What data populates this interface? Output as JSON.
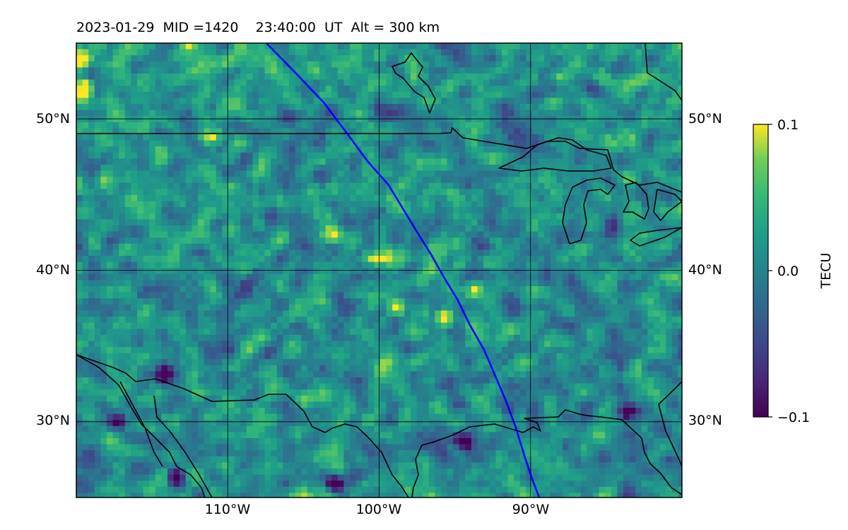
{
  "title": "2023-01-29  MID =1420    23:40:00  UT  Alt = 300 km",
  "map": {
    "lon_range": [
      -120,
      -80
    ],
    "lat_range": [
      25,
      55
    ],
    "lat_labels": [
      {
        "lat": 50,
        "text": "50°N"
      },
      {
        "lat": 40,
        "text": "40°N"
      },
      {
        "lat": 30,
        "text": "30°N"
      }
    ],
    "lon_labels": [
      {
        "lon": -110,
        "text": "110°W"
      },
      {
        "lon": -100,
        "text": "100°W"
      },
      {
        "lon": -90,
        "text": "90°W"
      }
    ],
    "grid": true,
    "field_colormap": "viridis",
    "track_color": "#0000ff",
    "coast_color": "#000000"
  },
  "colorbar": {
    "label": "TECU",
    "range": [
      -0.1,
      0.1
    ],
    "ticks": [
      {
        "value": 0.1,
        "text": "0.1"
      },
      {
        "value": 0.0,
        "text": "0.0"
      },
      {
        "value": -0.1,
        "text": "−0.1"
      }
    ]
  }
}
